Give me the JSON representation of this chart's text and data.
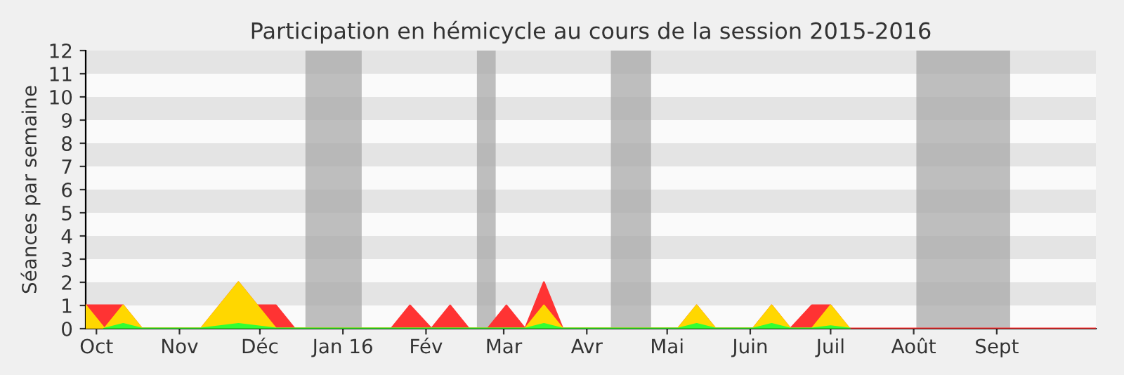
{
  "chart_data": {
    "type": "area",
    "title": "Participation en hémicycle au cours de la session 2015-2016",
    "ylabel": "Séances par semaine",
    "xlim": [
      "2015-09-27",
      "2016-10-08"
    ],
    "ylim": [
      0,
      12
    ],
    "yticks": [
      0,
      1,
      2,
      3,
      4,
      5,
      6,
      7,
      8,
      9,
      10,
      11,
      12
    ],
    "xticks": [
      {
        "value": "2015-10-01",
        "label": "Oct"
      },
      {
        "value": "2015-11-01",
        "label": "Nov"
      },
      {
        "value": "2015-12-01",
        "label": "Déc"
      },
      {
        "value": "2016-01-01",
        "label": "Jan 16"
      },
      {
        "value": "2016-02-01",
        "label": "Fév"
      },
      {
        "value": "2016-03-01",
        "label": "Mar"
      },
      {
        "value": "2016-04-01",
        "label": "Avr"
      },
      {
        "value": "2016-05-01",
        "label": "Mai"
      },
      {
        "value": "2016-06-01",
        "label": "Juin"
      },
      {
        "value": "2016-07-01",
        "label": "Juil"
      },
      {
        "value": "2016-08-01",
        "label": "Août"
      },
      {
        "value": "2016-09-01",
        "label": "Sept"
      }
    ],
    "bands": [
      {
        "axis": "x",
        "from": "2015-12-18",
        "to": "2016-01-08",
        "color": "#aaaaaa"
      },
      {
        "axis": "x",
        "from": "2016-02-20",
        "to": "2016-02-27",
        "color": "#aaaaaa"
      },
      {
        "axis": "x",
        "from": "2016-04-10",
        "to": "2016-04-25",
        "color": "#aaaaaa"
      },
      {
        "axis": "x",
        "from": "2016-08-02",
        "to": "2016-09-06",
        "color": "#aaaaaa"
      }
    ],
    "series": [
      {
        "color": "#ff3333",
        "x": [
          "2015-09-27",
          "2015-10-11",
          "2015-10-18",
          "2015-11-09",
          "2015-11-23",
          "2015-11-30",
          "2015-12-07",
          "2015-12-14",
          "2016-01-19",
          "2016-01-26",
          "2016-02-03",
          "2016-02-10",
          "2016-02-17",
          "2016-02-24",
          "2016-03-02",
          "2016-03-09",
          "2016-03-16",
          "2016-03-23",
          "2016-05-05",
          "2016-05-12",
          "2016-05-19",
          "2016-06-02",
          "2016-06-09",
          "2016-06-16",
          "2016-06-24",
          "2016-07-01",
          "2016-07-08",
          "2016-10-08"
        ],
        "values": [
          1,
          1,
          0,
          0,
          2,
          1,
          1,
          0,
          0,
          1,
          0,
          1,
          0,
          0,
          1,
          0,
          2,
          0,
          0,
          1,
          0,
          0,
          1,
          0,
          1,
          1,
          0,
          0
        ]
      },
      {
        "color": "#ffd700",
        "x": [
          "2015-09-27",
          "2015-10-04",
          "2015-10-11",
          "2015-10-18",
          "2015-11-09",
          "2015-11-23",
          "2015-11-30",
          "2015-12-07",
          "2016-03-09",
          "2016-03-16",
          "2016-03-23",
          "2016-05-05",
          "2016-05-12",
          "2016-05-19",
          "2016-06-02",
          "2016-06-09",
          "2016-06-16",
          "2016-06-24",
          "2016-07-01",
          "2016-07-08"
        ],
        "values": [
          1,
          0,
          1,
          0,
          0,
          2,
          1,
          0,
          0,
          1,
          0,
          0,
          1,
          0,
          0,
          1,
          0,
          0,
          1,
          0
        ]
      },
      {
        "color": "#33ff33",
        "x": [
          "2015-10-04",
          "2015-10-11",
          "2015-10-18",
          "2015-11-09",
          "2015-11-23",
          "2015-12-07",
          "2016-03-09",
          "2016-03-16",
          "2016-03-23",
          "2016-05-05",
          "2016-05-12",
          "2016-05-19",
          "2016-06-02",
          "2016-06-09",
          "2016-06-16",
          "2016-06-24",
          "2016-07-01",
          "2016-07-08"
        ],
        "values": [
          0,
          0.2,
          0,
          0,
          0.2,
          0,
          0,
          0.2,
          0,
          0,
          0.2,
          0,
          0,
          0.2,
          0,
          0,
          0.1,
          0
        ]
      }
    ]
  }
}
